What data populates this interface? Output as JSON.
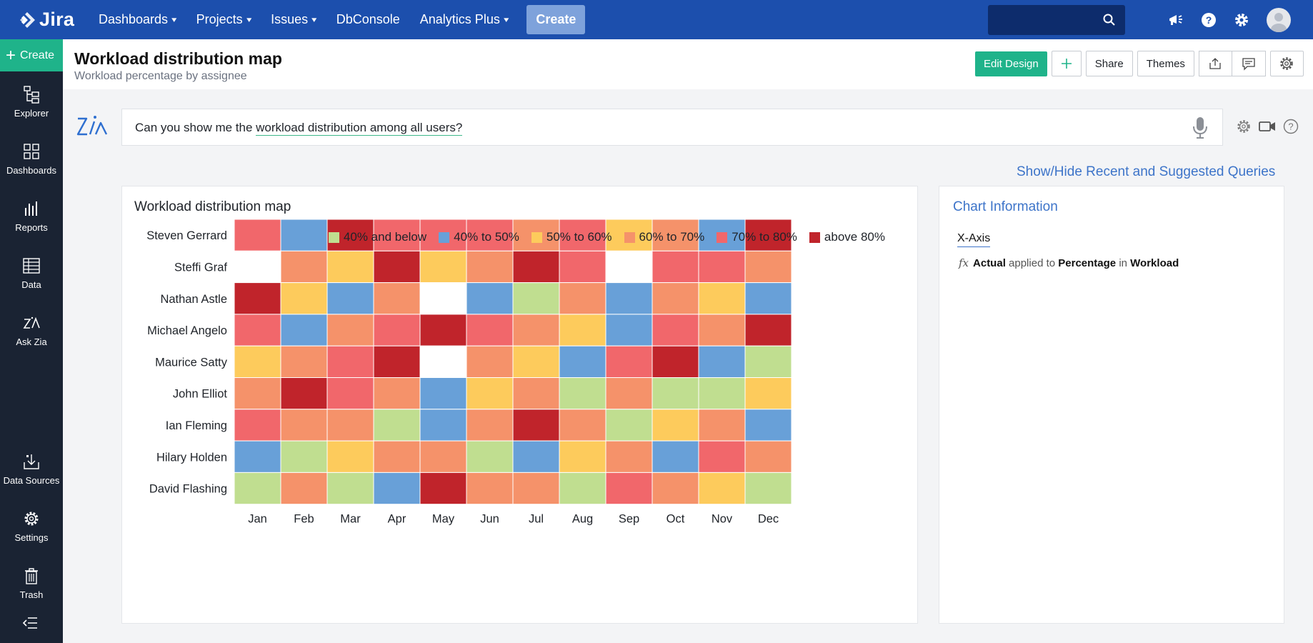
{
  "topbar": {
    "logo_text": "Jira",
    "nav": [
      {
        "label": "Dashboards",
        "dropdown": true
      },
      {
        "label": "Projects",
        "dropdown": true
      },
      {
        "label": "Issues",
        "dropdown": true
      },
      {
        "label": "DbConsole",
        "dropdown": false
      },
      {
        "label": "Analytics Plus",
        "dropdown": true
      }
    ],
    "create_label": "Create",
    "search_placeholder": "",
    "icons": [
      "megaphone-icon",
      "help-icon",
      "gear-icon",
      "avatar"
    ]
  },
  "sidebar": {
    "create_label": "Create",
    "items": [
      {
        "label": "Explorer",
        "icon": "explorer-icon"
      },
      {
        "label": "Dashboards",
        "icon": "dashboards-icon"
      },
      {
        "label": "Reports",
        "icon": "reports-icon"
      },
      {
        "label": "Data",
        "icon": "data-icon"
      },
      {
        "label": "Ask Zia",
        "icon": "zia-icon"
      },
      {
        "label": "Data Sources",
        "icon": "data-sources-icon"
      },
      {
        "label": "Settings",
        "icon": "settings-icon"
      },
      {
        "label": "Trash",
        "icon": "trash-icon"
      }
    ],
    "collapse_icon": "collapse-icon"
  },
  "header": {
    "title": "Workload distribution map",
    "subtitle": "Workload percentage by assignee",
    "edit_design_label": "Edit Design",
    "share_label": "Share",
    "themes_label": "Themes"
  },
  "zia": {
    "query_prefix": "Can you show me the ",
    "query_highlight": "workload distribution among all users?",
    "show_hide_label": "Show/Hide Recent and Suggested Queries"
  },
  "colors": {
    "topbar": "#1c4fad",
    "sidebar": "#1a2333",
    "accent_green": "#1fb38a",
    "link_blue": "#3d74c9"
  },
  "chart_data": {
    "type": "heatmap",
    "title": "Workload distribution map",
    "x": [
      "Jan",
      "Feb",
      "Mar",
      "Apr",
      "May",
      "Jun",
      "Jul",
      "Aug",
      "Sep",
      "Oct",
      "Nov",
      "Dec"
    ],
    "y": [
      "Steven Gerrard",
      "Steffi Graf",
      "Nathan Astle",
      "Michael Angelo",
      "Maurice Satty",
      "John Elliot",
      "Ian Fleming",
      "Hilary Holden",
      "David Flashing"
    ],
    "legend_position": "top-right",
    "bins": [
      {
        "label": "40% and below",
        "color": "#c0de90"
      },
      {
        "label": "40% to 50%",
        "color": "#68a0d8"
      },
      {
        "label": "50% to 60%",
        "color": "#fdcb5c"
      },
      {
        "label": "60% to 70%",
        "color": "#f5926a"
      },
      {
        "label": "70% to 80%",
        "color": "#f1676b"
      },
      {
        "label": "above 80%",
        "color": "#c0242b"
      }
    ],
    "cells": [
      [
        4,
        1,
        5,
        4,
        4,
        4,
        3,
        4,
        2,
        3,
        1,
        5
      ],
      [
        -1,
        3,
        2,
        5,
        2,
        3,
        5,
        4,
        -1,
        4,
        4,
        3
      ],
      [
        5,
        2,
        1,
        3,
        -1,
        1,
        0,
        3,
        1,
        3,
        2,
        1
      ],
      [
        4,
        1,
        3,
        4,
        5,
        4,
        3,
        2,
        1,
        4,
        3,
        5
      ],
      [
        2,
        3,
        4,
        5,
        -1,
        3,
        2,
        1,
        4,
        5,
        1,
        0
      ],
      [
        3,
        5,
        4,
        3,
        1,
        2,
        3,
        0,
        3,
        0,
        0,
        2
      ],
      [
        4,
        3,
        3,
        0,
        1,
        3,
        5,
        3,
        0,
        2,
        3,
        1
      ],
      [
        1,
        0,
        2,
        3,
        3,
        0,
        1,
        2,
        3,
        1,
        4,
        3
      ],
      [
        0,
        3,
        0,
        1,
        5,
        3,
        3,
        0,
        4,
        3,
        2,
        0
      ]
    ],
    "cells_note_empty": -1
  },
  "info": {
    "title": "Chart Information",
    "xaxis_label": "X-Axis",
    "fx": "fx",
    "func": "Actual",
    "applied_to": "applied to",
    "field": "Percentage",
    "in": "in",
    "table": "Workload"
  }
}
